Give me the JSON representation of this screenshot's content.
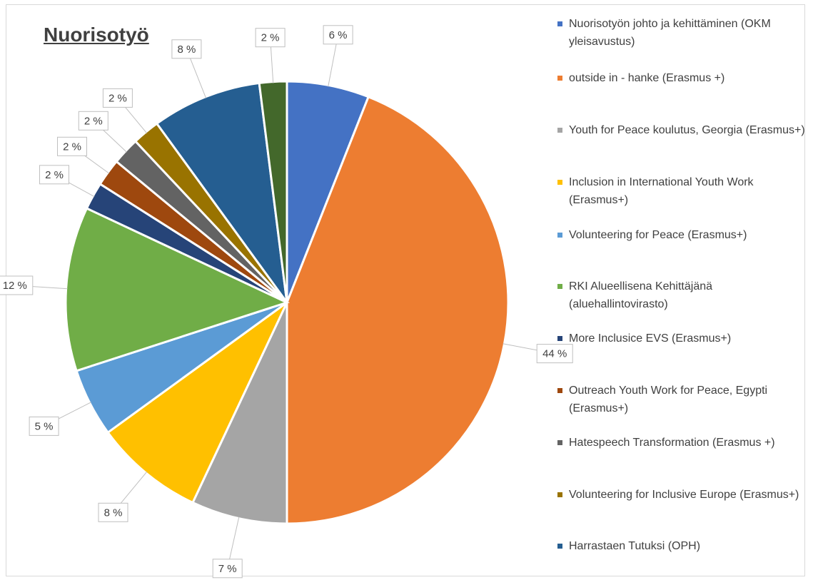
{
  "chart_data": {
    "type": "pie",
    "title": "Nuorisotyö",
    "label_suffix": " %",
    "slices": [
      {
        "label": "Nuorisotyön johto ja kehittäminen (OKM yleisavustus)",
        "value": 6,
        "color": "#4472c4"
      },
      {
        "label": "outside in - hanke (Erasmus +)",
        "value": 44,
        "color": "#ed7d31"
      },
      {
        "label": "Youth for Peace koulutus, Georgia (Erasmus+)",
        "value": 7,
        "color": "#a5a5a5"
      },
      {
        "label": "Inclusion in International Youth Work (Erasmus+)",
        "value": 8,
        "color": "#ffc000"
      },
      {
        "label": "Volunteering for Peace (Erasmus+)",
        "value": 5,
        "color": "#5b9bd5"
      },
      {
        "label": "RKI Alueellisena Kehittäjänä (aluehallintovirasto)",
        "value": 12,
        "color": "#70ad47"
      },
      {
        "label": "More Inclusice EVS (Erasmus+)",
        "value": 2,
        "color": "#264478"
      },
      {
        "label": "Outreach Youth Work for Peace, Egypti (Erasmus+)",
        "value": 2,
        "color": "#9e480e"
      },
      {
        "label": "Hatespeech Transformation (Erasmus +)",
        "value": 2,
        "color": "#636363"
      },
      {
        "label": "Volunteering for Inclusive Europe (Erasmus+)",
        "value": 2,
        "color": "#997300"
      },
      {
        "label": "Harrastaen Tutuksi (OPH)",
        "value": 8,
        "color": "#255e91"
      },
      {
        "label": "",
        "value": 2,
        "color": "#43682b"
      }
    ],
    "legend_position": "right"
  },
  "legend": {
    "items": [
      {
        "label": "Nuorisotyön johto ja kehittäminen (OKM yleisavustus)",
        "color": "#4472c4"
      },
      {
        "label": "outside in - hanke (Erasmus +)",
        "color": "#ed7d31"
      },
      {
        "label": "Youth for Peace koulutus, Georgia (Erasmus+)",
        "color": "#a5a5a5"
      },
      {
        "label": "Inclusion in International Youth Work (Erasmus+)",
        "color": "#ffc000"
      },
      {
        "label": "Volunteering for Peace (Erasmus+)",
        "color": "#5b9bd5"
      },
      {
        "label": "RKI Alueellisena Kehittäjänä (aluehallintovirasto)",
        "color": "#70ad47"
      },
      {
        "label": "More Inclusice EVS (Erasmus+)",
        "color": "#264478"
      },
      {
        "label": "Outreach Youth Work for Peace, Egypti (Erasmus+)",
        "color": "#9e480e"
      },
      {
        "label": "Hatespeech Transformation (Erasmus +)",
        "color": "#636363"
      },
      {
        "label": "Volunteering for Inclusive Europe (Erasmus+)",
        "color": "#997300"
      },
      {
        "label": "Harrastaen Tutuksi (OPH)",
        "color": "#255e91"
      }
    ]
  }
}
